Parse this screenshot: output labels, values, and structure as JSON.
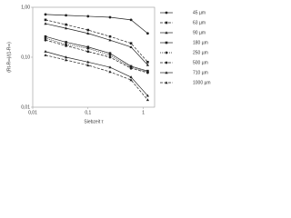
{
  "chart_data": {
    "type": "line",
    "x_label": "Siebzeit τ",
    "y_label": "(Rt-R∞)/(1-R∞)",
    "x": [
      0.017,
      0.04,
      0.1,
      0.25,
      0.6,
      1.2
    ],
    "xlim": [
      0.01,
      1.6
    ],
    "ylim": [
      0.01,
      1
    ],
    "log_x": true,
    "log_y": true,
    "xticks": [
      {
        "value": 0.01,
        "label": "0,01"
      },
      {
        "value": 0.1,
        "label": "0,1"
      },
      {
        "value": 1,
        "label": "1"
      }
    ],
    "yticks": [
      {
        "value": 0.01,
        "label": "0,01"
      },
      {
        "value": 0.1,
        "label": "0,10"
      },
      {
        "value": 1,
        "label": "1,00"
      }
    ],
    "series": [
      {
        "name": "45 µm",
        "color": "#222222",
        "dash": "solid",
        "marker": "circle",
        "values": [
          0.72,
          0.69,
          0.66,
          0.63,
          0.56,
          0.3
        ]
      },
      {
        "name": "63 µm",
        "color": "#222222",
        "dash": "dashed",
        "marker": "square",
        "values": [
          0.56,
          0.45,
          0.35,
          0.26,
          0.19,
          0.08
        ]
      },
      {
        "name": "90 µm",
        "color": "#222222",
        "dash": "solid",
        "marker": "triangle",
        "values": [
          0.47,
          0.38,
          0.3,
          0.22,
          0.16,
          0.07
        ]
      },
      {
        "name": "180 µm",
        "color": "#222222",
        "dash": "solid",
        "marker": "square",
        "values": [
          0.26,
          0.2,
          0.16,
          0.12,
          0.066,
          0.053
        ]
      },
      {
        "name": "250 µm",
        "color": "#222222",
        "dash": "dotted",
        "marker": "diamond",
        "values": [
          0.24,
          0.18,
          0.15,
          0.11,
          0.063,
          0.051
        ]
      },
      {
        "name": "500 µm",
        "color": "#222222",
        "dash": "dashed",
        "marker": "circle",
        "values": [
          0.22,
          0.17,
          0.13,
          0.1,
          0.06,
          0.049
        ]
      },
      {
        "name": "710 µm",
        "color": "#222222",
        "dash": "solid",
        "marker": "triangle",
        "values": [
          0.13,
          0.1,
          0.08,
          0.063,
          0.04,
          0.017
        ]
      },
      {
        "name": "1000 µm",
        "color": "#222222",
        "dash": "dashed",
        "marker": "triangle",
        "values": [
          0.11,
          0.088,
          0.069,
          0.051,
          0.035,
          0.014
        ]
      }
    ]
  }
}
